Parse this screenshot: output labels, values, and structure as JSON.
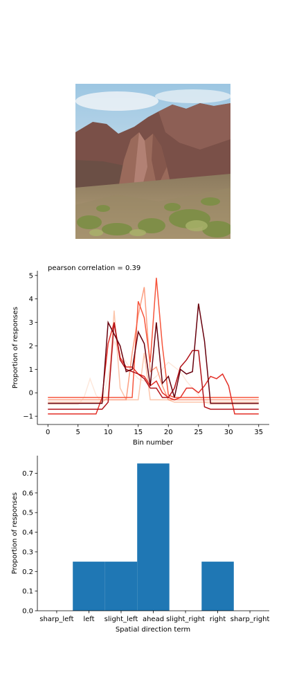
{
  "photo": {
    "subject": "desert rock formation",
    "colors": {
      "sky": "#b9d6e8",
      "rock": "#8a5a4e",
      "shrub": "#8f9a55",
      "ground": "#a08866"
    }
  },
  "chart_data": [
    {
      "type": "line",
      "title": "pearson correlation = 0.39",
      "xlabel": "Bin number",
      "ylabel": "Proportion of responses",
      "xlim": [
        -1.75,
        36.75
      ],
      "ylim": [
        -1.35,
        5.2
      ],
      "xticks": [
        0,
        5,
        10,
        15,
        20,
        25,
        30,
        35
      ],
      "yticks": [
        -1,
        0,
        1,
        2,
        3,
        4,
        5
      ],
      "colormap": "Reds",
      "series": [
        {
          "color": "#fde8dc",
          "values": [
            -0.5,
            -0.5,
            -0.5,
            -0.5,
            -0.5,
            -0.5,
            -0.2,
            0.6,
            -0.1,
            -0.4,
            0.7,
            2.2,
            1.7,
            1.3,
            0.9,
            0.6,
            0.5,
            0.5,
            0.7,
            1.0,
            1.3,
            1.1,
            0.9,
            0.5,
            0.2,
            -0.1,
            -0.4,
            -0.5,
            -0.5,
            -0.5,
            -0.5,
            -0.5,
            -0.5,
            -0.5,
            -0.5,
            -0.5
          ]
        },
        {
          "color": "#fcc5ab",
          "values": [
            -0.4,
            -0.4,
            -0.4,
            -0.4,
            -0.4,
            -0.4,
            -0.4,
            -0.4,
            -0.4,
            -0.4,
            -0.2,
            3.5,
            0.2,
            -0.3,
            -0.3,
            -0.3,
            1.7,
            -0.3,
            -0.3,
            -0.3,
            -0.3,
            -0.4,
            -0.4,
            -0.4,
            -0.4,
            -0.4,
            -0.4,
            -0.4,
            -0.4,
            -0.4,
            -0.4,
            -0.4,
            -0.4,
            -0.4,
            -0.4,
            -0.4
          ]
        },
        {
          "color": "#fc9e80",
          "values": [
            -0.3,
            -0.3,
            -0.3,
            -0.3,
            -0.3,
            -0.3,
            -0.3,
            -0.3,
            -0.3,
            -0.3,
            -0.3,
            -0.3,
            -0.3,
            -0.3,
            1.7,
            3.3,
            4.5,
            0.9,
            1.1,
            0.3,
            -0.3,
            -0.3,
            -0.3,
            -0.3,
            -0.3,
            -0.3,
            -0.3,
            -0.3,
            -0.3,
            -0.3,
            -0.3,
            -0.3,
            -0.3,
            -0.3,
            -0.3,
            -0.3
          ]
        },
        {
          "color": "#f6553c",
          "values": [
            -0.2,
            -0.2,
            -0.2,
            -0.2,
            -0.2,
            -0.2,
            -0.2,
            -0.2,
            -0.2,
            -0.2,
            -0.2,
            -0.2,
            -0.2,
            -0.2,
            -0.2,
            3.9,
            3.2,
            1.3,
            4.9,
            2.0,
            -0.1,
            -0.2,
            -0.2,
            -0.2,
            -0.2,
            -0.2,
            -0.2,
            -0.2,
            -0.2,
            -0.2,
            -0.2,
            -0.2,
            -0.2,
            -0.2,
            -0.2,
            -0.2
          ]
        },
        {
          "color": "#e32f27",
          "values": [
            -0.9,
            -0.9,
            -0.9,
            -0.9,
            -0.9,
            -0.9,
            -0.9,
            -0.9,
            -0.9,
            -0.2,
            2.1,
            3.0,
            1.5,
            1.1,
            1.1,
            0.8,
            0.7,
            0.3,
            0.5,
            0.0,
            -0.2,
            -0.3,
            -0.2,
            0.2,
            0.2,
            0.0,
            0.3,
            0.7,
            0.6,
            0.8,
            0.3,
            -0.9,
            -0.9,
            -0.9,
            -0.9,
            -0.9
          ]
        },
        {
          "color": "#b11218",
          "values": [
            -0.7,
            -0.7,
            -0.7,
            -0.7,
            -0.7,
            -0.7,
            -0.7,
            -0.7,
            -0.7,
            -0.7,
            -0.4,
            3.0,
            1.4,
            1.0,
            0.9,
            0.8,
            0.6,
            0.2,
            0.2,
            -0.2,
            -0.2,
            0.2,
            1.1,
            1.4,
            1.8,
            1.8,
            -0.6,
            -0.7,
            -0.7,
            -0.7,
            -0.7,
            -0.7,
            -0.7,
            -0.7,
            -0.7,
            -0.7
          ]
        },
        {
          "color": "#67000d",
          "values": [
            -0.45,
            -0.45,
            -0.45,
            -0.45,
            -0.45,
            -0.45,
            -0.45,
            -0.45,
            -0.45,
            -0.45,
            3.0,
            2.5,
            2.0,
            0.9,
            1.0,
            2.6,
            2.1,
            0.3,
            3.0,
            0.4,
            0.7,
            -0.2,
            1.0,
            0.8,
            0.9,
            3.8,
            2.2,
            -0.45,
            -0.45,
            -0.45,
            -0.45,
            -0.45,
            -0.45,
            -0.45,
            -0.45,
            -0.45
          ]
        }
      ]
    },
    {
      "type": "bar",
      "title": "",
      "xlabel": "Spatial direction term",
      "ylabel": "Proportion of responses",
      "categories": [
        "sharp_left",
        "left",
        "slight_left",
        "ahead",
        "slight_right",
        "right",
        "sharp_right"
      ],
      "values": [
        0.0,
        0.25,
        0.25,
        0.75,
        0.0,
        0.25,
        0.0
      ],
      "ylim": [
        0,
        0.79
      ],
      "yticks": [
        0.0,
        0.1,
        0.2,
        0.3,
        0.4,
        0.5,
        0.6,
        0.7
      ],
      "bar_color": "#1f77b4"
    }
  ]
}
